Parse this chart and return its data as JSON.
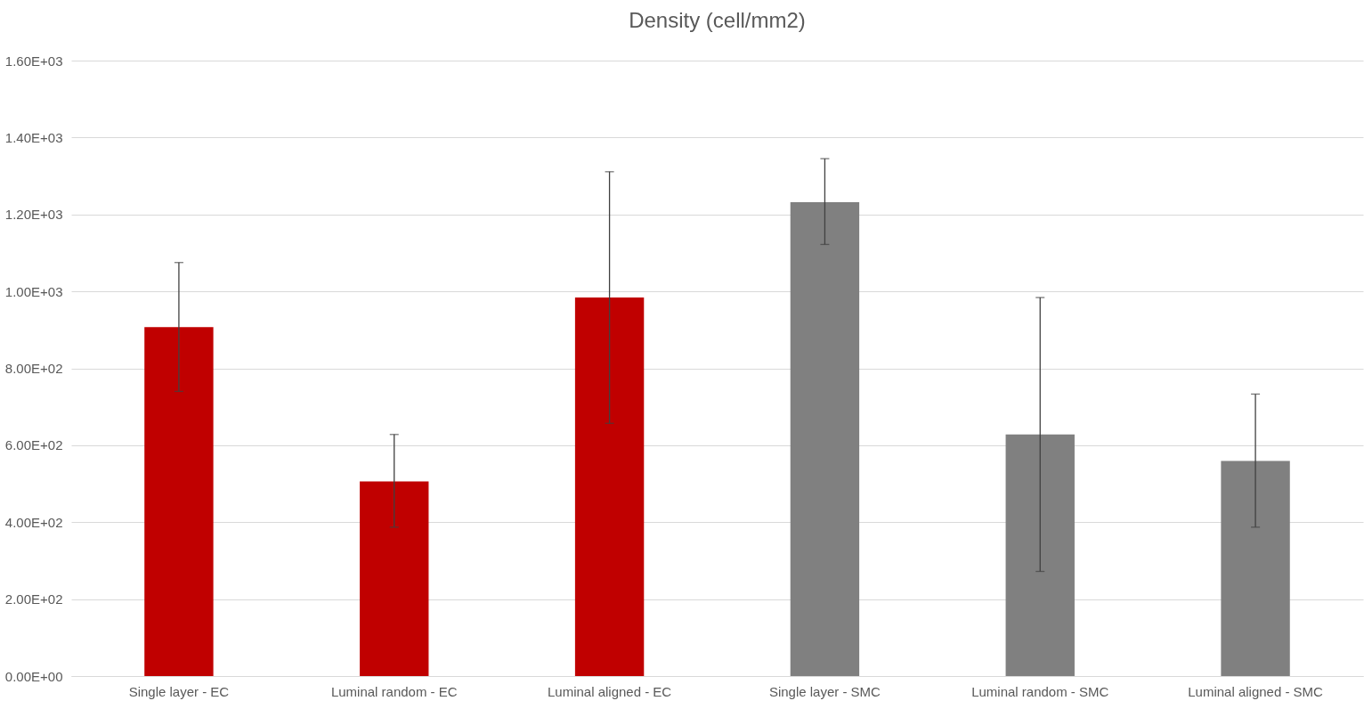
{
  "chart_data": {
    "type": "bar",
    "title": "Density (cell/mm2)",
    "categories": [
      "Single layer - EC",
      "Luminal random - EC",
      "Luminal aligned - EC",
      "Single layer - SMC",
      "Luminal random - SMC",
      "Luminal aligned - SMC"
    ],
    "values": [
      907,
      506,
      984,
      1232,
      628,
      559
    ],
    "colors": [
      "#c00000",
      "#c00000",
      "#c00000",
      "#808080",
      "#808080",
      "#808080"
    ],
    "errors": [
      [
        740,
        1075
      ],
      [
        387,
        628
      ],
      [
        657,
        1311
      ],
      [
        1122,
        1345
      ],
      [
        272,
        984
      ],
      [
        387,
        733
      ]
    ],
    "ylim": [
      0,
      1600
    ],
    "yticks": [
      {
        "value": 0,
        "label": "0.00E+00"
      },
      {
        "value": 200,
        "label": "2.00E+02"
      },
      {
        "value": 400,
        "label": "4.00E+02"
      },
      {
        "value": 600,
        "label": "6.00E+02"
      },
      {
        "value": 800,
        "label": "8.00E+02"
      },
      {
        "value": 1000,
        "label": "1.00E+03"
      },
      {
        "value": 1200,
        "label": "1.20E+03"
      },
      {
        "value": 1400,
        "label": "1.40E+03"
      },
      {
        "value": 1600,
        "label": "1.60E+03"
      }
    ],
    "grid": "y"
  }
}
